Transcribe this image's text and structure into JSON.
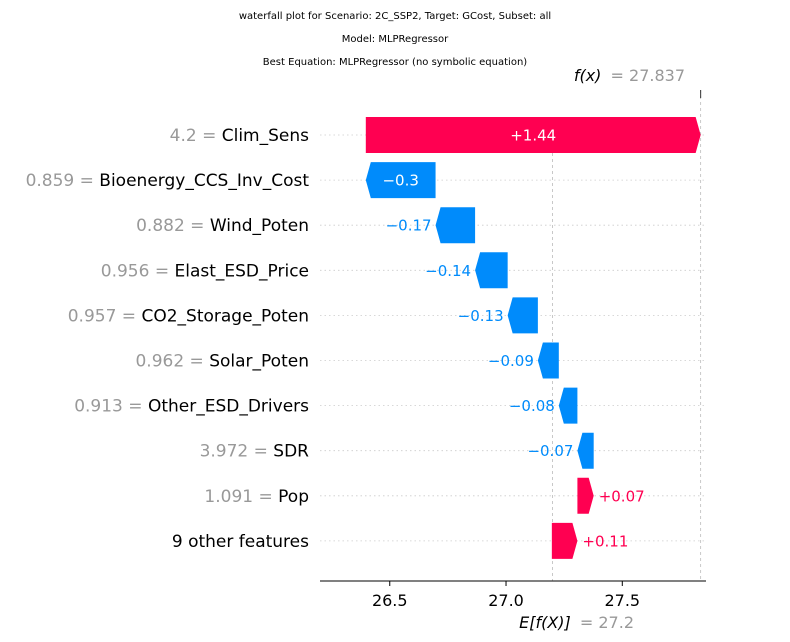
{
  "chart_data": {
    "type": "waterfall",
    "titles": [
      "waterfall plot for Scenario: 2C_SSP2, Target: GCost, Subset: all",
      "Model: MLPRegressor",
      "Best Equation: MLPRegressor (no symbolic equation)"
    ],
    "fx_label": "f(x)",
    "fx_value_text": "= 27.837",
    "fx": 27.837,
    "base_label": "E[f(X)]",
    "base_value_text": "= 27.2",
    "base_value": 27.2,
    "xlim": [
      26.2,
      27.86
    ],
    "xticks": [
      26.5,
      27.0,
      27.5
    ],
    "xtick_labels": [
      "26.5",
      "27.0",
      "27.5"
    ],
    "features": [
      {
        "value": "4.2",
        "name": "Clim_Sens",
        "shap": 1.44,
        "label": "+1.44"
      },
      {
        "value": "0.859",
        "name": "Bioenergy_CCS_Inv_Cost",
        "shap": -0.3,
        "label": "−0.3"
      },
      {
        "value": "0.882",
        "name": "Wind_Poten",
        "shap": -0.17,
        "label": "−0.17"
      },
      {
        "value": "0.956",
        "name": "Elast_ESD_Price",
        "shap": -0.14,
        "label": "−0.14"
      },
      {
        "value": "0.957",
        "name": "CO2_Storage_Poten",
        "shap": -0.13,
        "label": "−0.13"
      },
      {
        "value": "0.962",
        "name": "Solar_Poten",
        "shap": -0.09,
        "label": "−0.09"
      },
      {
        "value": "0.913",
        "name": "Other_ESD_Drivers",
        "shap": -0.08,
        "label": "−0.08"
      },
      {
        "value": "3.972",
        "name": "SDR",
        "shap": -0.07,
        "label": "−0.07"
      },
      {
        "value": "1.091",
        "name": "Pop",
        "shap": 0.07,
        "label": "+0.07"
      },
      {
        "value": "",
        "name": "9 other features",
        "shap": 0.11,
        "label": "+0.11"
      }
    ],
    "colors": {
      "positive": "#ff0051",
      "negative": "#008bfb",
      "value_text": "#999999",
      "grid": "#cccccc"
    }
  }
}
